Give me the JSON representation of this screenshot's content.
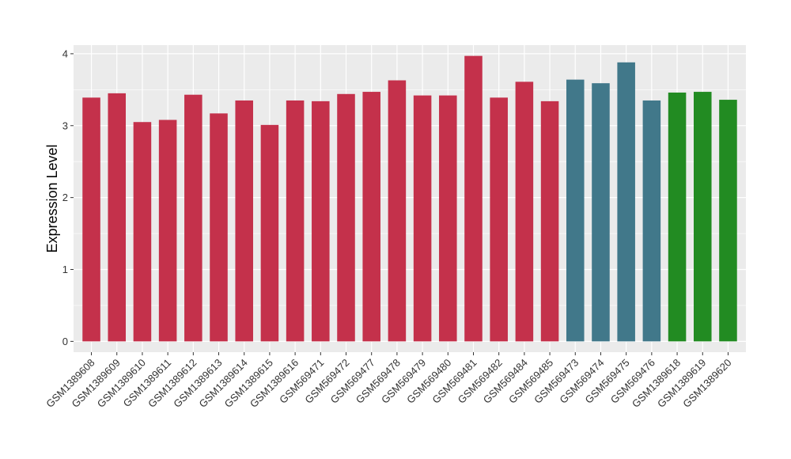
{
  "chart_data": {
    "type": "bar",
    "title": "",
    "xlabel": "",
    "ylabel": "Expression Level",
    "ylim": [
      -0.15,
      4.12
    ],
    "yticks": [
      0,
      1,
      2,
      3,
      4
    ],
    "grid": true,
    "legend": "none",
    "categories": [
      "GSM1389608",
      "GSM1389609",
      "GSM1389610",
      "GSM1389611",
      "GSM1389612",
      "GSM1389613",
      "GSM1389614",
      "GSM1389615",
      "GSM1389616",
      "GSM569471",
      "GSM569472",
      "GSM569477",
      "GSM569478",
      "GSM569479",
      "GSM569480",
      "GSM569481",
      "GSM569482",
      "GSM569484",
      "GSM569485",
      "GSM569473",
      "GSM569474",
      "GSM569475",
      "GSM569476",
      "GSM1389618",
      "GSM1389619",
      "GSM1389620"
    ],
    "values": [
      3.39,
      3.45,
      3.05,
      3.08,
      3.43,
      3.17,
      3.35,
      3.01,
      3.35,
      3.34,
      3.44,
      3.47,
      3.63,
      3.42,
      3.42,
      3.97,
      3.39,
      3.61,
      3.34,
      3.64,
      3.59,
      3.88,
      3.35,
      3.46,
      3.47,
      3.36
    ],
    "bar_colors": [
      "#C4314B",
      "#C4314B",
      "#C4314B",
      "#C4314B",
      "#C4314B",
      "#C4314B",
      "#C4314B",
      "#C4314B",
      "#C4314B",
      "#C4314B",
      "#C4314B",
      "#C4314B",
      "#C4314B",
      "#C4314B",
      "#C4314B",
      "#C4314B",
      "#C4314B",
      "#C4314B",
      "#C4314B",
      "#41788A",
      "#41788A",
      "#41788A",
      "#41788A",
      "#228B22",
      "#228B22",
      "#228B22"
    ],
    "panel_background": "#EBEBEB",
    "grid_color": "#FFFFFF"
  }
}
